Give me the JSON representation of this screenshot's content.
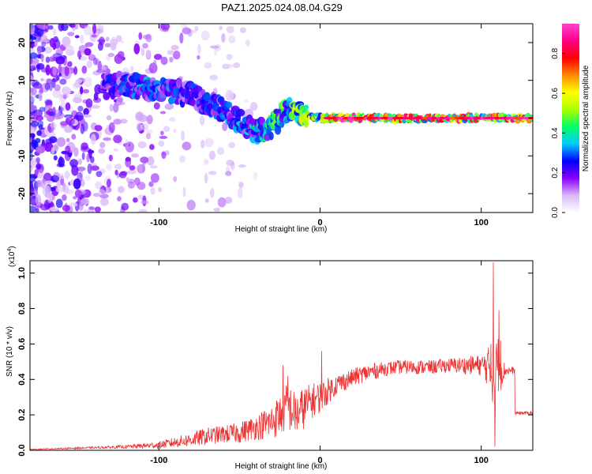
{
  "title": "PAZ1.2025.024.08.04.G29",
  "chart_data": [
    {
      "type": "heatmap",
      "xlabel": "Height of straight line (km)",
      "ylabel": "Frequency (Hz)",
      "xlim": [
        -180,
        132
      ],
      "ylim": [
        -25,
        25
      ],
      "xticks": [
        -100,
        0,
        100
      ],
      "yticks": [
        -20,
        -10,
        0,
        10,
        20
      ],
      "colorbar": {
        "label": "Normalized spectral amplitude",
        "range": [
          0,
          0.95
        ],
        "ticks": [
          "0.0",
          "0.2",
          "0.4",
          "0.6",
          "0.8"
        ],
        "tick_values": [
          0.0,
          0.2,
          0.4,
          0.6,
          0.8
        ],
        "colors": [
          "#ffffff",
          "#d8b8f8",
          "#8800ff",
          "#0000ff",
          "#00ccff",
          "#00ff66",
          "#aaff00",
          "#ffff00",
          "#ff8800",
          "#ff0000",
          "#ff0088",
          "#ff44cc"
        ]
      },
      "ridge": [
        {
          "x": -130,
          "f": 8.5,
          "amp": 0.25
        },
        {
          "x": -120,
          "f": 9,
          "amp": 0.3
        },
        {
          "x": -110,
          "f": 8,
          "amp": 0.35
        },
        {
          "x": -100,
          "f": 8,
          "amp": 0.3
        },
        {
          "x": -90,
          "f": 7,
          "amp": 0.3
        },
        {
          "x": -80,
          "f": 6,
          "amp": 0.3
        },
        {
          "x": -70,
          "f": 4,
          "amp": 0.3
        },
        {
          "x": -60,
          "f": 2,
          "amp": 0.3
        },
        {
          "x": -50,
          "f": -1,
          "amp": 0.35
        },
        {
          "x": -40,
          "f": -4,
          "amp": 0.4
        },
        {
          "x": -30,
          "f": -2,
          "amp": 0.45
        },
        {
          "x": -20,
          "f": 2,
          "amp": 0.5
        },
        {
          "x": -10,
          "f": 1,
          "amp": 0.6
        },
        {
          "x": 0,
          "f": 0,
          "amp": 0.6
        },
        {
          "x": 10,
          "f": 0,
          "amp": 0.85
        },
        {
          "x": 20,
          "f": 0,
          "amp": 0.9
        },
        {
          "x": 40,
          "f": 0,
          "amp": 0.8
        },
        {
          "x": 60,
          "f": 0,
          "amp": 0.8
        },
        {
          "x": 80,
          "f": 0,
          "amp": 0.85
        },
        {
          "x": 100,
          "f": 0,
          "amp": 0.8
        },
        {
          "x": 110,
          "f": 0,
          "amp": 0.7
        },
        {
          "x": 120,
          "f": 0,
          "amp": 0.8
        },
        {
          "x": 130,
          "f": 0,
          "amp": 0.85
        }
      ]
    },
    {
      "type": "line",
      "xlabel": "Height of straight line (km)",
      "ylabel": "SNR (10 * v/v)",
      "yscale_label": "(x10",
      "yscale_exp": "4",
      "yscale_close": ")",
      "xlim": [
        -180,
        132
      ],
      "ylim": [
        0,
        1.07
      ],
      "xticks": [
        -100,
        0,
        100
      ],
      "yticks": [
        "0.0",
        "0.2",
        "0.4",
        "0.6",
        "0.8",
        "1.0"
      ],
      "ytick_values": [
        0.0,
        0.2,
        0.4,
        0.6,
        0.8,
        1.0
      ],
      "series": [
        {
          "color": "#ee3333",
          "x": [
            -180,
            -160,
            -140,
            -120,
            -100,
            -80,
            -70,
            -60,
            -50,
            -40,
            -30,
            -25,
            -20,
            -15,
            -10,
            -5,
            0,
            10,
            20,
            30,
            40,
            50,
            60,
            70,
            80,
            90,
            100,
            105,
            108,
            110,
            112,
            115,
            120,
            121,
            125,
            132
          ],
          "y": [
            0.005,
            0.01,
            0.015,
            0.02,
            0.03,
            0.06,
            0.08,
            0.09,
            0.1,
            0.13,
            0.16,
            0.2,
            0.25,
            0.2,
            0.24,
            0.28,
            0.3,
            0.37,
            0.41,
            0.44,
            0.46,
            0.47,
            0.47,
            0.47,
            0.48,
            0.48,
            0.48,
            0.47,
            0.4,
            0.5,
            0.45,
            0.45,
            0.45,
            0.21,
            0.21,
            0.21
          ],
          "noise": [
            0.002,
            0.004,
            0.006,
            0.01,
            0.02,
            0.04,
            0.05,
            0.05,
            0.06,
            0.07,
            0.1,
            0.12,
            0.14,
            0.12,
            0.12,
            0.1,
            0.09,
            0.06,
            0.05,
            0.05,
            0.04,
            0.04,
            0.04,
            0.04,
            0.04,
            0.05,
            0.06,
            0.12,
            0.2,
            0.18,
            0.12,
            0.03,
            0.02,
            0.01,
            0.01,
            0.01
          ],
          "spikes": [
            {
              "x": -23,
              "y": 0.48
            },
            {
              "x": -20,
              "y": 0.42
            },
            {
              "x": 1,
              "y": 0.56
            },
            {
              "x": 106,
              "y": 0.6
            },
            {
              "x": 107.5,
              "y": 1.06
            },
            {
              "x": 108.5,
              "y": 0.02
            },
            {
              "x": 111,
              "y": 0.79
            },
            {
              "x": 112,
              "y": 0.62
            }
          ]
        }
      ]
    }
  ]
}
